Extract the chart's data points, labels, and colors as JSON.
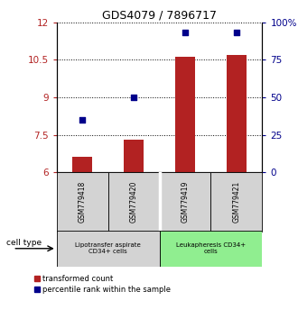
{
  "title": "GDS4079 / 7896717",
  "samples": [
    "GSM779418",
    "GSM779420",
    "GSM779419",
    "GSM779421"
  ],
  "bar_values": [
    6.63,
    7.32,
    10.62,
    10.68
  ],
  "percentile_values": [
    35,
    50,
    93,
    93
  ],
  "ylim_left": [
    6,
    12
  ],
  "ylim_right": [
    0,
    100
  ],
  "yticks_left": [
    6,
    7.5,
    9,
    10.5,
    12
  ],
  "yticks_right": [
    0,
    25,
    50,
    75,
    100
  ],
  "ytick_labels_left": [
    "6",
    "7.5",
    "9",
    "10.5",
    "12"
  ],
  "ytick_labels_right": [
    "0",
    "25",
    "50",
    "75",
    "100%"
  ],
  "bar_color": "#b22222",
  "dot_color": "#00008b",
  "group1_label": "Lipotransfer aspirate\nCD34+ cells",
  "group2_label": "Leukapheresis CD34+\ncells",
  "group1_color": "#d3d3d3",
  "group2_color": "#90ee90",
  "cell_type_label": "cell type",
  "legend_bar_label": "transformed count",
  "legend_dot_label": "percentile rank within the sample",
  "grid_color": "#000000"
}
